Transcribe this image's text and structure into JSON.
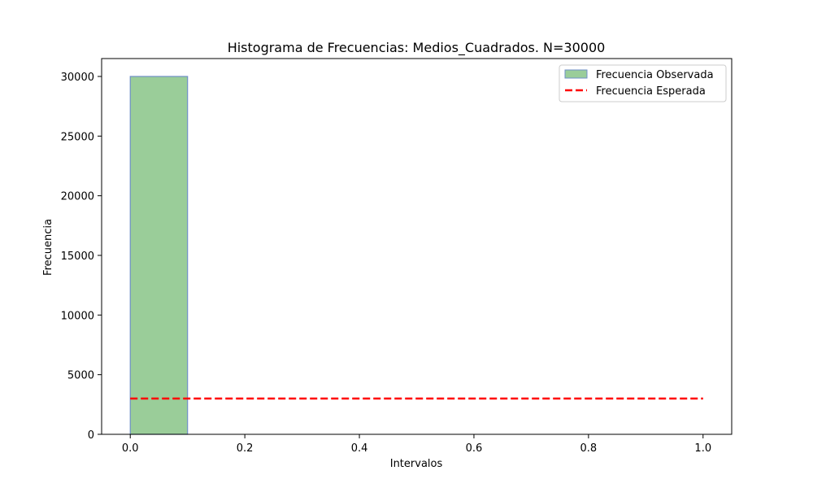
{
  "chart_data": {
    "type": "bar",
    "title": "Histograma de Frecuencias: Medios_Cuadrados. N=30000",
    "xlabel": "Intervalos",
    "ylabel": "Frecuencia",
    "xlim": [
      -0.05,
      1.05
    ],
    "ylim": [
      0,
      31500
    ],
    "x_ticks": [
      0.0,
      0.2,
      0.4,
      0.6,
      0.8,
      1.0
    ],
    "x_tick_labels": [
      "0.0",
      "0.2",
      "0.4",
      "0.6",
      "0.8",
      "1.0"
    ],
    "y_ticks": [
      0,
      5000,
      10000,
      15000,
      20000,
      25000,
      30000
    ],
    "y_tick_labels": [
      "0",
      "5000",
      "10000",
      "15000",
      "20000",
      "25000",
      "30000"
    ],
    "grid": false,
    "legend_position": "top-right",
    "series": [
      {
        "name": "Frecuencia Observada",
        "kind": "histogram",
        "color": "#9ACD99",
        "edge_color": "#6F8FC7",
        "bins": [
          {
            "start": 0.0,
            "end": 0.1,
            "value": 30000
          },
          {
            "start": 0.1,
            "end": 0.2,
            "value": 0
          },
          {
            "start": 0.2,
            "end": 0.3,
            "value": 0
          },
          {
            "start": 0.3,
            "end": 0.4,
            "value": 0
          },
          {
            "start": 0.4,
            "end": 0.5,
            "value": 0
          },
          {
            "start": 0.5,
            "end": 0.6,
            "value": 0
          },
          {
            "start": 0.6,
            "end": 0.7,
            "value": 0
          },
          {
            "start": 0.7,
            "end": 0.8,
            "value": 0
          },
          {
            "start": 0.8,
            "end": 0.9,
            "value": 0
          },
          {
            "start": 0.9,
            "end": 1.0,
            "value": 0
          }
        ]
      },
      {
        "name": "Frecuencia Esperada",
        "kind": "line",
        "style": "dashed",
        "color": "#FF0000",
        "x": [
          0.0,
          1.0
        ],
        "y": [
          3000,
          3000
        ]
      }
    ]
  }
}
